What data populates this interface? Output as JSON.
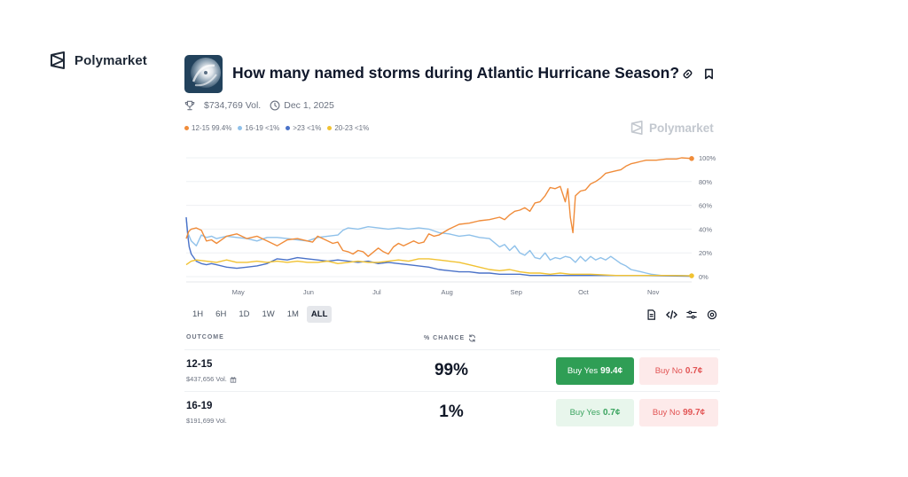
{
  "brand": {
    "name": "Polymarket"
  },
  "market": {
    "title": "How many named storms during Atlantic Hurricane Season?",
    "volume": "$734,769 Vol.",
    "end_date": "Dec 1, 2025",
    "watermark": "Polymarket"
  },
  "legend": [
    {
      "label": "12-15 99.4%",
      "color": "#f08c3a"
    },
    {
      "label": "16-19 <1%",
      "color": "#8fc1ea"
    },
    {
      "label": ">23 <1%",
      "color": "#4a72c8"
    },
    {
      "label": "20-23 <1%",
      "color": "#f1c232"
    }
  ],
  "time_ranges": [
    "1H",
    "6H",
    "1D",
    "1W",
    "1M",
    "ALL"
  ],
  "active_range": "ALL",
  "table": {
    "outcome_header": "OUTCOME",
    "chance_header": "% CHANCE",
    "rows": [
      {
        "name": "12-15",
        "volume": "$437,656 Vol.",
        "chance": "99%",
        "yes_label": "Buy Yes",
        "yes_price": "99.4¢",
        "no_label": "Buy No",
        "no_price": "0.7¢"
      },
      {
        "name": "16-19",
        "volume": "$191,699 Vol.",
        "chance": "1%",
        "yes_label": "Buy Yes",
        "yes_price": "0.7¢",
        "no_label": "Buy No",
        "no_price": "99.7¢"
      }
    ]
  },
  "chart_data": {
    "type": "line",
    "x_labels": [
      "May",
      "Jun",
      "Jul",
      "Aug",
      "Sep",
      "Oct",
      "Nov"
    ],
    "y_ticks": [
      "100%",
      "80%",
      "60%",
      "40%",
      "20%",
      "0%"
    ],
    "ylim": [
      0,
      100
    ],
    "grid": true,
    "legend_position": "top-left",
    "series": [
      {
        "name": "12-15",
        "color": "#f08c3a",
        "points": [
          [
            0,
            32
          ],
          [
            0.5,
            38
          ],
          [
            1,
            40
          ],
          [
            2,
            41
          ],
          [
            3,
            39
          ],
          [
            4,
            30
          ],
          [
            5,
            31
          ],
          [
            6,
            28
          ],
          [
            8,
            34
          ],
          [
            10,
            36
          ],
          [
            12,
            32
          ],
          [
            14,
            34
          ],
          [
            16,
            30
          ],
          [
            18,
            26
          ],
          [
            20,
            31
          ],
          [
            22,
            32
          ],
          [
            24,
            30
          ],
          [
            25,
            29
          ],
          [
            26,
            34
          ],
          [
            28,
            30
          ],
          [
            29,
            28
          ],
          [
            30,
            29
          ],
          [
            31,
            22
          ],
          [
            32,
            21
          ],
          [
            33,
            19
          ],
          [
            34,
            22
          ],
          [
            35,
            21
          ],
          [
            36,
            17
          ],
          [
            38,
            24
          ],
          [
            39,
            21
          ],
          [
            40,
            19
          ],
          [
            41,
            25
          ],
          [
            42,
            28
          ],
          [
            43,
            26
          ],
          [
            44,
            28
          ],
          [
            45,
            30
          ],
          [
            46,
            28
          ],
          [
            47,
            29
          ],
          [
            48,
            36
          ],
          [
            49,
            34
          ],
          [
            50,
            35
          ],
          [
            52,
            40
          ],
          [
            54,
            44
          ],
          [
            56,
            45
          ],
          [
            58,
            47
          ],
          [
            60,
            48
          ],
          [
            62,
            50
          ],
          [
            63,
            48
          ],
          [
            64,
            52
          ],
          [
            65,
            55
          ],
          [
            66,
            56
          ],
          [
            67,
            58
          ],
          [
            68,
            55
          ],
          [
            69,
            62
          ],
          [
            70,
            63
          ],
          [
            71,
            68
          ],
          [
            72,
            75
          ],
          [
            73,
            74
          ],
          [
            74,
            76
          ],
          [
            75,
            63
          ],
          [
            75.5,
            74
          ],
          [
            76,
            50
          ],
          [
            76.5,
            37
          ],
          [
            77,
            68
          ],
          [
            78,
            72
          ],
          [
            79,
            73
          ],
          [
            80,
            78
          ],
          [
            81,
            80
          ],
          [
            82,
            83
          ],
          [
            83,
            87
          ],
          [
            84,
            88
          ],
          [
            85,
            89
          ],
          [
            86,
            90
          ],
          [
            87,
            93
          ],
          [
            88,
            95
          ],
          [
            89,
            96
          ],
          [
            90,
            97
          ],
          [
            91,
            98
          ],
          [
            93,
            98
          ],
          [
            95,
            99
          ],
          [
            97,
            99
          ],
          [
            98,
            100
          ],
          [
            100,
            99.4
          ]
        ]
      },
      {
        "name": "16-19",
        "color": "#8fc1ea",
        "points": [
          [
            0,
            49
          ],
          [
            0.3,
            37
          ],
          [
            1,
            30
          ],
          [
            2,
            26
          ],
          [
            3,
            35
          ],
          [
            4,
            33
          ],
          [
            5,
            34
          ],
          [
            6,
            32
          ],
          [
            8,
            34
          ],
          [
            10,
            33
          ],
          [
            12,
            32
          ],
          [
            14,
            30
          ],
          [
            16,
            33
          ],
          [
            18,
            33
          ],
          [
            20,
            32
          ],
          [
            22,
            31
          ],
          [
            24,
            30
          ],
          [
            26,
            33
          ],
          [
            28,
            34
          ],
          [
            30,
            35
          ],
          [
            31,
            39
          ],
          [
            32,
            41
          ],
          [
            34,
            40
          ],
          [
            36,
            42
          ],
          [
            38,
            41
          ],
          [
            40,
            40
          ],
          [
            42,
            41
          ],
          [
            44,
            40
          ],
          [
            46,
            41
          ],
          [
            48,
            40
          ],
          [
            50,
            37
          ],
          [
            52,
            36
          ],
          [
            54,
            34
          ],
          [
            56,
            35
          ],
          [
            58,
            33
          ],
          [
            60,
            32
          ],
          [
            62,
            25
          ],
          [
            63,
            27
          ],
          [
            64,
            22
          ],
          [
            65,
            26
          ],
          [
            66,
            20
          ],
          [
            67,
            18
          ],
          [
            68,
            22
          ],
          [
            69,
            16
          ],
          [
            70,
            15
          ],
          [
            71,
            20
          ],
          [
            72,
            14
          ],
          [
            73,
            16
          ],
          [
            74,
            15
          ],
          [
            75,
            17
          ],
          [
            76,
            16
          ],
          [
            77,
            12
          ],
          [
            78,
            17
          ],
          [
            79,
            13
          ],
          [
            80,
            17
          ],
          [
            81,
            14
          ],
          [
            82,
            16
          ],
          [
            83,
            14
          ],
          [
            84,
            17
          ],
          [
            85,
            14
          ],
          [
            86,
            11
          ],
          [
            87,
            9
          ],
          [
            88,
            6
          ],
          [
            89,
            5
          ],
          [
            90,
            4
          ],
          [
            91,
            3
          ],
          [
            92,
            2
          ],
          [
            94,
            1
          ],
          [
            96,
            1
          ],
          [
            98,
            1
          ],
          [
            100,
            0.6
          ]
        ]
      },
      {
        "name": ">23",
        "color": "#4a72c8",
        "points": [
          [
            0,
            50
          ],
          [
            0.3,
            35
          ],
          [
            0.6,
            25
          ],
          [
            1,
            19
          ],
          [
            2,
            13
          ],
          [
            3,
            11
          ],
          [
            4,
            10
          ],
          [
            5,
            11
          ],
          [
            6,
            10
          ],
          [
            8,
            8
          ],
          [
            10,
            7
          ],
          [
            12,
            8
          ],
          [
            14,
            9
          ],
          [
            16,
            11
          ],
          [
            18,
            15
          ],
          [
            20,
            14
          ],
          [
            22,
            16
          ],
          [
            24,
            15
          ],
          [
            26,
            14
          ],
          [
            28,
            13
          ],
          [
            30,
            14
          ],
          [
            32,
            13
          ],
          [
            34,
            12
          ],
          [
            36,
            13
          ],
          [
            38,
            11
          ],
          [
            40,
            12
          ],
          [
            42,
            11
          ],
          [
            44,
            10
          ],
          [
            46,
            9
          ],
          [
            48,
            8
          ],
          [
            50,
            6
          ],
          [
            52,
            5
          ],
          [
            54,
            4
          ],
          [
            56,
            4
          ],
          [
            58,
            3
          ],
          [
            60,
            3
          ],
          [
            62,
            2
          ],
          [
            64,
            2
          ],
          [
            66,
            2
          ],
          [
            68,
            1
          ],
          [
            70,
            1
          ],
          [
            80,
            1
          ],
          [
            90,
            1
          ],
          [
            100,
            0.4
          ]
        ]
      },
      {
        "name": "20-23",
        "color": "#f1c232",
        "points": [
          [
            0,
            10
          ],
          [
            1,
            13
          ],
          [
            2,
            14
          ],
          [
            4,
            13
          ],
          [
            6,
            12
          ],
          [
            8,
            14
          ],
          [
            10,
            12
          ],
          [
            12,
            12
          ],
          [
            14,
            13
          ],
          [
            16,
            12
          ],
          [
            18,
            13
          ],
          [
            20,
            12
          ],
          [
            22,
            13
          ],
          [
            24,
            12
          ],
          [
            26,
            12
          ],
          [
            28,
            13
          ],
          [
            30,
            11
          ],
          [
            32,
            12
          ],
          [
            34,
            13
          ],
          [
            36,
            12
          ],
          [
            38,
            12
          ],
          [
            40,
            13
          ],
          [
            42,
            14
          ],
          [
            44,
            13
          ],
          [
            46,
            15
          ],
          [
            48,
            15
          ],
          [
            50,
            14
          ],
          [
            52,
            13
          ],
          [
            54,
            12
          ],
          [
            56,
            10
          ],
          [
            58,
            8
          ],
          [
            60,
            6
          ],
          [
            62,
            5
          ],
          [
            64,
            6
          ],
          [
            66,
            4
          ],
          [
            68,
            3
          ],
          [
            70,
            3
          ],
          [
            72,
            2
          ],
          [
            74,
            3
          ],
          [
            76,
            2
          ],
          [
            78,
            2
          ],
          [
            80,
            2
          ],
          [
            85,
            1
          ],
          [
            90,
            1
          ],
          [
            95,
            1
          ],
          [
            100,
            0.7
          ]
        ]
      }
    ]
  }
}
